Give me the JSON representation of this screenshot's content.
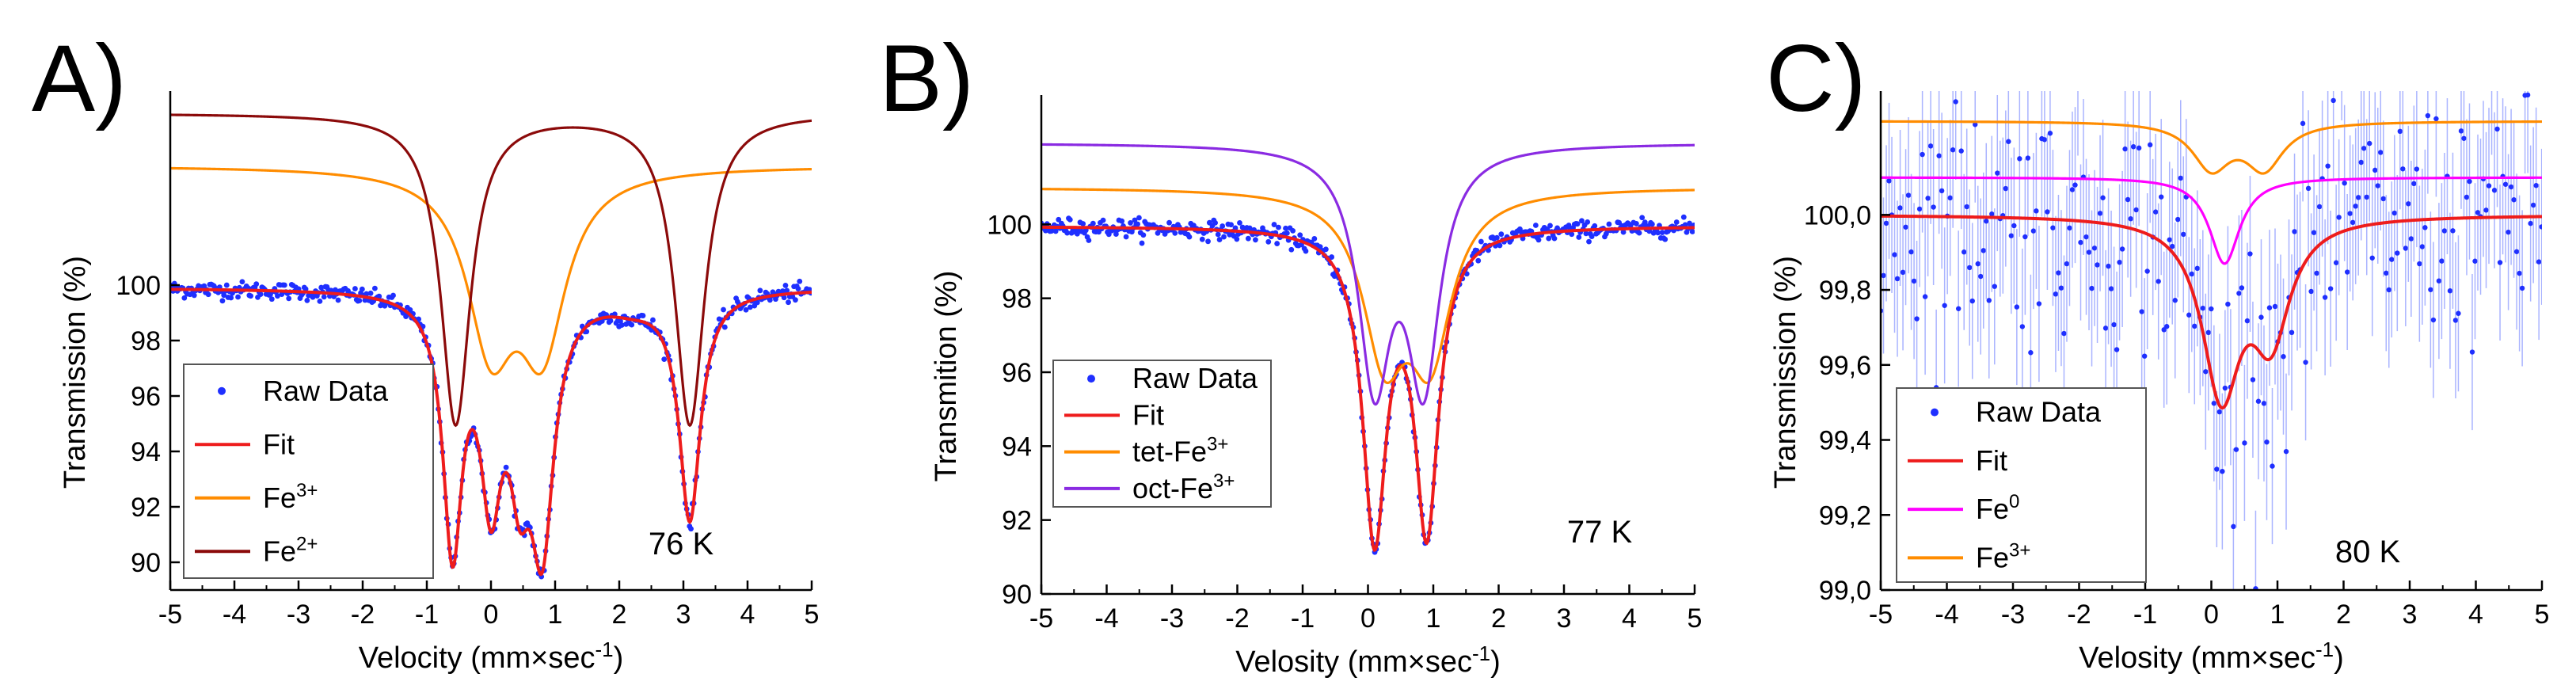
{
  "colors": {
    "raw": "#1f2fff",
    "errbar": "#aab4ff",
    "fit": "#ee1c1c",
    "fe3": "#ff8c00",
    "fe2": "#8b0a0a",
    "oct": "#8a2be2",
    "fe0": "#ff00ff"
  },
  "chart_data": [
    {
      "panel": "A)",
      "type": "scatter",
      "temperature": "76 K",
      "xlabel": "Velocity (mm×sec",
      "xlabel_sup": "-1",
      "xlabel_end": ")",
      "ylabel": "Transmission (%)",
      "xlim": [
        -5,
        5
      ],
      "ylim": [
        89,
        107
      ],
      "xticks": [
        "-5",
        "-4",
        "-3",
        "-2",
        "-1",
        "0",
        "1",
        "2",
        "3",
        "4",
        "5"
      ],
      "yticks": [
        "90",
        "92",
        "94",
        "96",
        "98",
        "100"
      ],
      "legend_placement": "bottom-left",
      "legend": [
        {
          "label": "Raw Data",
          "sup": "",
          "kind": "marker"
        },
        {
          "label": "Fit",
          "sup": "",
          "kind": "line"
        },
        {
          "label": "Fe",
          "sup": "3+",
          "kind": "line"
        },
        {
          "label": "Fe",
          "sup": "2+",
          "kind": "line"
        }
      ],
      "series": [
        {
          "name": "Raw Data",
          "kind": "points",
          "baseline": 99.9,
          "noise": 0.15,
          "range": [
            -5,
            5
          ],
          "step": 0.022
        },
        {
          "name": "Fit",
          "kind": "lorentz",
          "baseline": 99.9,
          "lines": [
            [
              -0.6,
              9.0,
              0.18
            ],
            [
              0.8,
              8.4,
              0.22
            ],
            [
              0.0,
              6.6,
              0.2
            ],
            [
              3.1,
              8.2,
              0.2
            ],
            [
              0.45,
              5.0,
              0.2
            ],
            [
              2.2,
              0.4,
              0.5
            ]
          ]
        },
        {
          "name": "Fe3+",
          "kind": "lorentz",
          "baseline": 104.3,
          "lines": [
            [
              0.0,
              6.0,
              0.45
            ],
            [
              0.8,
              6.0,
              0.45
            ]
          ]
        },
        {
          "name": "Fe2+",
          "kind": "lorentz",
          "baseline": 106.2,
          "lines": [
            [
              -0.55,
              11.2,
              0.28
            ],
            [
              3.1,
              11.2,
              0.28
            ]
          ]
        }
      ]
    },
    {
      "panel": "B)",
      "type": "scatter",
      "temperature": "77 K",
      "xlabel": "Velosity (mm×sec",
      "xlabel_sup": "-1",
      "xlabel_end": ")",
      "ylabel": "Transmition (%)",
      "xlim": [
        -5,
        5
      ],
      "ylim": [
        90,
        103.5
      ],
      "xticks": [
        "-5",
        "-4",
        "-3",
        "-2",
        "-1",
        "0",
        "1",
        "2",
        "3",
        "4",
        "5"
      ],
      "yticks": [
        "90",
        "92",
        "94",
        "96",
        "98",
        "100"
      ],
      "legend_placement": "bottom-left",
      "legend": [
        {
          "label": "Raw Data",
          "sup": "",
          "kind": "marker"
        },
        {
          "label": "Fit",
          "sup": "",
          "kind": "line"
        },
        {
          "label": "tet-Fe",
          "sup": "3+",
          "kind": "line"
        },
        {
          "label": "oct-Fe",
          "sup": "3+",
          "kind": "line"
        }
      ],
      "series": [
        {
          "name": "Raw Data",
          "kind": "points",
          "baseline": 99.95,
          "noise": 0.12,
          "range": [
            -5,
            5
          ],
          "step": 0.022
        },
        {
          "name": "Fit",
          "kind": "lorentz",
          "baseline": 99.95,
          "lines": [
            [
              0.1,
              8.2,
              0.22
            ],
            [
              0.9,
              8.0,
              0.22
            ]
          ]
        },
        {
          "name": "tet-Fe3+",
          "kind": "lorentz",
          "baseline": 101.0,
          "lines": [
            [
              0.25,
              4.2,
              0.4
            ],
            [
              0.95,
              4.2,
              0.4
            ]
          ]
        },
        {
          "name": "oct-Fe3+",
          "kind": "lorentz",
          "baseline": 102.2,
          "lines": [
            [
              0.1,
              6.2,
              0.3
            ],
            [
              0.85,
              6.2,
              0.3
            ]
          ]
        }
      ]
    },
    {
      "panel": "C)",
      "type": "scatter",
      "temperature": "80 K",
      "xlabel": "Velosity (mm×sec",
      "xlabel_sup": "-1",
      "xlabel_end": ")",
      "ylabel": "Transmission (%)",
      "xlim": [
        -5,
        5
      ],
      "ylim": [
        99.0,
        100.33
      ],
      "xticks": [
        "-5",
        "-4",
        "-3",
        "-2",
        "-1",
        "0",
        "1",
        "2",
        "3",
        "4",
        "5"
      ],
      "yticks": [
        "99,0",
        "99,2",
        "99,4",
        "99,6",
        "99,8",
        "100,0"
      ],
      "legend_placement": "bottom-left",
      "legend": [
        {
          "label": "Raw Data",
          "sup": "",
          "kind": "marker"
        },
        {
          "label": "Fit",
          "sup": "",
          "kind": "line"
        },
        {
          "label": "Fe",
          "sup": "0",
          "kind": "line"
        },
        {
          "label": "Fe",
          "sup": "3+",
          "kind": "line"
        }
      ],
      "series": [
        {
          "name": "Raw Data",
          "kind": "points",
          "baseline": 100.0,
          "noise": 0.16,
          "range": [
            -5,
            5
          ],
          "step": 0.042,
          "errorbars": true
        },
        {
          "name": "Fit",
          "kind": "lorentz",
          "baseline": 100.0,
          "lines": [
            [
              0.15,
              0.46,
              0.35
            ],
            [
              0.9,
              0.3,
              0.35
            ]
          ]
        },
        {
          "name": "Fe0",
          "kind": "lorentz",
          "baseline": 100.1,
          "lines": [
            [
              0.2,
              0.23,
              0.28
            ]
          ]
        },
        {
          "name": "Fe3+",
          "kind": "lorentz",
          "baseline": 100.25,
          "lines": [
            [
              0.0,
              0.12,
              0.35
            ],
            [
              0.8,
              0.12,
              0.35
            ]
          ]
        }
      ]
    }
  ]
}
